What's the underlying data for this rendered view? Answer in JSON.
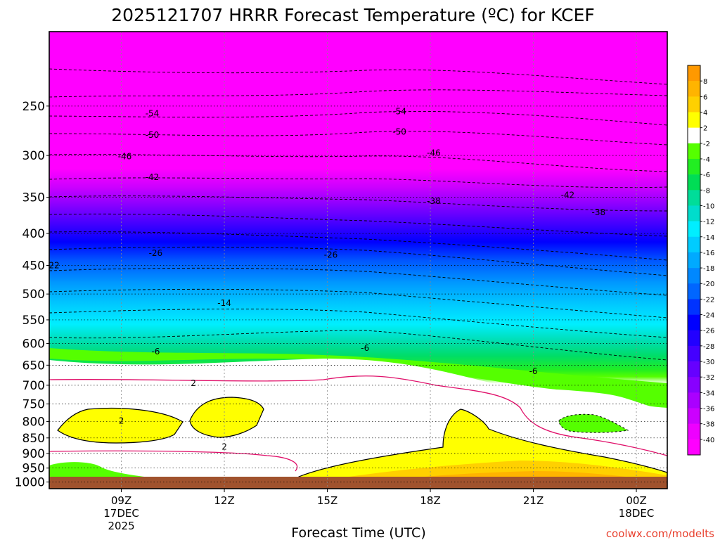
{
  "chart_data": {
    "type": "heatmap",
    "title": "2025121707 HRRR Forecast Temperature (ºC) for KCEF",
    "xlabel": "Forecast Time (UTC)",
    "ylabel": "",
    "y_scale": "log",
    "y_inverted": true,
    "x_ticks": [
      {
        "hour": 9,
        "label": "09Z",
        "date": "17DEC",
        "year": "2025"
      },
      {
        "hour": 12,
        "label": "12Z",
        "date": "",
        "year": ""
      },
      {
        "hour": 15,
        "label": "15Z",
        "date": "",
        "year": ""
      },
      {
        "hour": 18,
        "label": "18Z",
        "date": "",
        "year": ""
      },
      {
        "hour": 21,
        "label": "21Z",
        "date": "",
        "year": ""
      },
      {
        "hour": 24,
        "label": "00Z",
        "date": "18DEC",
        "year": ""
      }
    ],
    "y_ticks": [
      250,
      300,
      350,
      400,
      450,
      500,
      550,
      600,
      650,
      700,
      750,
      800,
      850,
      900,
      950,
      1000
    ],
    "colorbar": {
      "levels": [
        8,
        6,
        4,
        2,
        -2,
        -4,
        -6,
        -8,
        -10,
        -12,
        -14,
        -16,
        -18,
        -20,
        -22,
        -24,
        -26,
        -28,
        -30,
        -32,
        -34,
        -36,
        -38,
        -40
      ],
      "colors": [
        "#ff9900",
        "#ffb400",
        "#ffd000",
        "#ffff00",
        "#ffffff",
        "#55ff00",
        "#22ee22",
        "#00dd55",
        "#00dd99",
        "#00ddcc",
        "#00eeff",
        "#00ccff",
        "#00aaff",
        "#0088ff",
        "#0066ff",
        "#0033ff",
        "#0000ff",
        "#2200ff",
        "#4400ff",
        "#6600ff",
        "#8800ff",
        "#aa00ff",
        "#cc00ff",
        "#ee00ff",
        "#ff00ff"
      ]
    },
    "contour_labels": [
      {
        "value": "-54",
        "hour": 9.9,
        "p": 257
      },
      {
        "value": "-54",
        "hour": 17.1,
        "p": 255
      },
      {
        "value": "-50",
        "hour": 9.9,
        "p": 278
      },
      {
        "value": "-50",
        "hour": 17.1,
        "p": 275
      },
      {
        "value": "-46",
        "hour": 9.1,
        "p": 301
      },
      {
        "value": "-46",
        "hour": 18.1,
        "p": 297
      },
      {
        "value": "-42",
        "hour": 9.9,
        "p": 325
      },
      {
        "value": "-42",
        "hour": 22.0,
        "p": 347
      },
      {
        "value": "-38",
        "hour": 18.1,
        "p": 355
      },
      {
        "value": "-38",
        "hour": 22.9,
        "p": 370
      },
      {
        "value": "-26",
        "hour": 10.0,
        "p": 430
      },
      {
        "value": "-26",
        "hour": 15.1,
        "p": 433
      },
      {
        "value": "-22",
        "hour": 7.0,
        "p": 450
      },
      {
        "value": "-14",
        "hour": 12.0,
        "p": 517
      },
      {
        "value": "-6",
        "hour": 10.0,
        "p": 618
      },
      {
        "value": "-6",
        "hour": 16.1,
        "p": 610
      },
      {
        "value": "-6",
        "hour": 21.0,
        "p": 665
      },
      {
        "value": "2",
        "hour": 11.1,
        "p": 695
      },
      {
        "value": "2",
        "hour": 9.0,
        "p": 798
      },
      {
        "value": "2",
        "hour": 12.0,
        "p": 879
      }
    ],
    "bands_at_12Z": [
      {
        "p_top": 240,
        "p_bottom": 340,
        "temp_range": "below -40"
      },
      {
        "p_top": 340,
        "p_bottom": 420,
        "temp_range": "-40 to -28"
      },
      {
        "p_top": 420,
        "p_bottom": 500,
        "temp_range": "-28 to -16"
      },
      {
        "p_top": 500,
        "p_bottom": 610,
        "temp_range": "-16 to -8"
      },
      {
        "p_top": 610,
        "p_bottom": 680,
        "temp_range": "-8 to -2"
      },
      {
        "p_top": 680,
        "p_bottom": 1000,
        "temp_range": "-2 to 2, pockets 2 to 4 near 800-870"
      }
    ]
  },
  "credit": "coolwx.com/modelts"
}
